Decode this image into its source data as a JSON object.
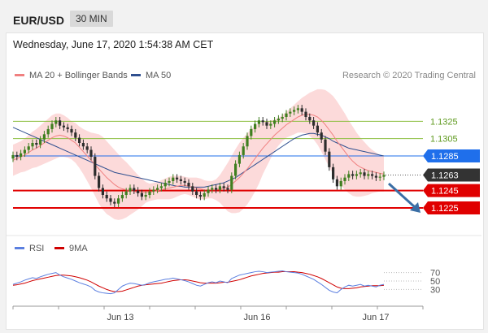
{
  "header": {
    "pair": "EUR/USD",
    "timeframe": "30 MIN"
  },
  "datetime": "Wednesday, June 17, 2020 1:54:38 AM CET",
  "credit": "Research © 2020 Trading Central",
  "colors": {
    "bollinger_fill": "#fbd3d3",
    "ma20": "#f08080",
    "ma50": "#2f4f8f",
    "support": "#e00000",
    "resistance": "#8cbf3f",
    "pivot_blue": "#1f6feb",
    "last_price": "#333333",
    "arrow": "#3a6ea5",
    "rsi": "#5b7fe0",
    "rsi_ma": "#d00000",
    "candle_up": "#3f7f1f",
    "candle_down": "#2d2d2d"
  },
  "chart_data": [
    {
      "type": "candlestick",
      "title": "EUR/USD",
      "timeframe": "30 MIN",
      "ylim": [
        1.121,
        1.136
      ],
      "x_ticks": [
        "Jun 13",
        "Jun 16",
        "Jun 17"
      ],
      "legend": [
        {
          "name": "MA 20 + Bollinger Bands",
          "color": "#f08080"
        },
        {
          "name": "MA 50",
          "color": "#2f4f8f"
        }
      ],
      "levels": [
        {
          "label": "1.1325",
          "value": 1.1325,
          "kind": "resistance"
        },
        {
          "label": "1.1305",
          "value": 1.1305,
          "kind": "resistance"
        },
        {
          "label": "1.1285",
          "value": 1.1285,
          "kind": "pivot"
        },
        {
          "label": "1.1263",
          "value": 1.1263,
          "kind": "last"
        },
        {
          "label": "1.1245",
          "value": 1.1245,
          "kind": "support"
        },
        {
          "label": "1.1225",
          "value": 1.1225,
          "kind": "support"
        }
      ],
      "close": [
        1.1286,
        1.1284,
        1.1288,
        1.1292,
        1.1296,
        1.13,
        1.1298,
        1.1304,
        1.131,
        1.1316,
        1.1322,
        1.1326,
        1.132,
        1.1318,
        1.1316,
        1.1312,
        1.1306,
        1.13,
        1.1296,
        1.1292,
        1.1284,
        1.1262,
        1.1248,
        1.124,
        1.1236,
        1.1232,
        1.123,
        1.1236,
        1.124,
        1.1244,
        1.1248,
        1.1245,
        1.1242,
        1.1238,
        1.124,
        1.1244,
        1.1246,
        1.1248,
        1.125,
        1.1254,
        1.1256,
        1.126,
        1.1258,
        1.1256,
        1.1254,
        1.125,
        1.1244,
        1.124,
        1.1238,
        1.1242,
        1.1246,
        1.1248,
        1.1246,
        1.125,
        1.1248,
        1.1246,
        1.1262,
        1.1276,
        1.1286,
        1.1296,
        1.1308,
        1.1316,
        1.1322,
        1.1326,
        1.1324,
        1.132,
        1.1322,
        1.1326,
        1.1328,
        1.133,
        1.1334,
        1.1336,
        1.1338,
        1.134,
        1.1336,
        1.133,
        1.1326,
        1.132,
        1.1312,
        1.1304,
        1.129,
        1.1272,
        1.1258,
        1.125,
        1.1256,
        1.126,
        1.1264,
        1.1262,
        1.1264,
        1.1266,
        1.1262,
        1.1264,
        1.1262,
        1.126,
        1.1261,
        1.1263
      ],
      "ma20": [
        1.128,
        1.1282,
        1.1284,
        1.1286,
        1.1289,
        1.1292,
        1.1294,
        1.1297,
        1.13,
        1.1303,
        1.1306,
        1.1308,
        1.1309,
        1.1308,
        1.1306,
        1.1303,
        1.13,
        1.1295,
        1.129,
        1.1285,
        1.128,
        1.1275,
        1.127,
        1.1265,
        1.126,
        1.1256,
        1.1252,
        1.1249,
        1.1247,
        1.1246,
        1.1245,
        1.1244,
        1.1243,
        1.1243,
        1.1243,
        1.1243,
        1.1244,
        1.1245,
        1.1246,
        1.1247,
        1.1248,
        1.1249,
        1.125,
        1.1251,
        1.1251,
        1.125,
        1.1249,
        1.1248,
        1.1247,
        1.1246,
        1.1246,
        1.1246,
        1.1246,
        1.1247,
        1.1248,
        1.1249,
        1.1252,
        1.1256,
        1.126,
        1.1265,
        1.127,
        1.1276,
        1.1282,
        1.1288,
        1.1294,
        1.1299,
        1.1304,
        1.1309,
        1.1313,
        1.1317,
        1.1321,
        1.1324,
        1.1327,
        1.133,
        1.1332,
        1.1333,
        1.1333,
        1.1332,
        1.133,
        1.1326,
        1.1321,
        1.1315,
        1.1309,
        1.1302,
        1.1296,
        1.129,
        1.1284,
        1.1279,
        1.1275,
        1.1272,
        1.127,
        1.1268,
        1.1267,
        1.1266,
        1.1265,
        1.1264
      ],
      "ma50": [
        1.1318,
        1.1316,
        1.1314,
        1.1312,
        1.131,
        1.1308,
        1.1306,
        1.1304,
        1.1302,
        1.13,
        1.1298,
        1.1296,
        1.1294,
        1.1292,
        1.129,
        1.1288,
        1.1286,
        1.1284,
        1.1282,
        1.128,
        1.1278,
        1.1276,
        1.1274,
        1.1272,
        1.127,
        1.1268,
        1.1266,
        1.1265,
        1.1264,
        1.1263,
        1.1262,
        1.1261,
        1.126,
        1.1259,
        1.1258,
        1.1257,
        1.1256,
        1.1255,
        1.1254,
        1.1253,
        1.1252,
        1.1251,
        1.125,
        1.125,
        1.1249,
        1.1249,
        1.1249,
        1.1249,
        1.1249,
        1.1249,
        1.125,
        1.1251,
        1.1252,
        1.1253,
        1.1254,
        1.1256,
        1.1258,
        1.126,
        1.1263,
        1.1266,
        1.1269,
        1.1272,
        1.1275,
        1.1278,
        1.1281,
        1.1284,
        1.1287,
        1.129,
        1.1293,
        1.1296,
        1.1299,
        1.1302,
        1.1305,
        1.1307,
        1.1309,
        1.131,
        1.1311,
        1.1311,
        1.131,
        1.1309,
        1.1307,
        1.1305,
        1.1302,
        1.13,
        1.1298,
        1.1296,
        1.1294,
        1.1293,
        1.1292,
        1.1291,
        1.129,
        1.1289,
        1.1288,
        1.1287,
        1.1286,
        1.1285
      ],
      "bb_width": [
        0.0018,
        0.0018,
        0.0018,
        0.0019,
        0.002,
        0.0021,
        0.0022,
        0.0023,
        0.0024,
        0.0025,
        0.0026,
        0.0026,
        0.0025,
        0.0024,
        0.0023,
        0.0022,
        0.0023,
        0.0024,
        0.0026,
        0.0029,
        0.0032,
        0.0036,
        0.004,
        0.0042,
        0.0042,
        0.0041,
        0.004,
        0.0038,
        0.0035,
        0.0032,
        0.0028,
        0.0024,
        0.002,
        0.0016,
        0.0012,
        0.001,
        0.001,
        0.001,
        0.0011,
        0.0012,
        0.0013,
        0.0013,
        0.0012,
        0.0011,
        0.001,
        0.001,
        0.0011,
        0.0012,
        0.0012,
        0.0011,
        0.001,
        0.001,
        0.0012,
        0.0016,
        0.0022,
        0.0028,
        0.0033,
        0.0037,
        0.004,
        0.0041,
        0.0041,
        0.004,
        0.0038,
        0.0035,
        0.003,
        0.0026,
        0.0022,
        0.0018,
        0.0016,
        0.0015,
        0.0015,
        0.0016,
        0.0017,
        0.0018,
        0.002,
        0.0022,
        0.0025,
        0.0028,
        0.0032,
        0.0036,
        0.004,
        0.0043,
        0.0045,
        0.0046,
        0.0045,
        0.0044,
        0.0042,
        0.004,
        0.0037,
        0.0034,
        0.0031,
        0.0028,
        0.0025,
        0.0023,
        0.0021,
        0.002
      ]
    },
    {
      "type": "line",
      "title": "RSI",
      "ylim": [
        0,
        100
      ],
      "y_ticks": [
        "70",
        "50",
        "30"
      ],
      "legend": [
        {
          "name": "RSI",
          "color": "#5b7fe0"
        },
        {
          "name": "9MA",
          "color": "#d00000"
        }
      ],
      "rsi": [
        42,
        45,
        48,
        52,
        55,
        58,
        56,
        60,
        63,
        66,
        68,
        70,
        64,
        60,
        57,
        54,
        50,
        46,
        43,
        40,
        36,
        28,
        24,
        22,
        21,
        20,
        22,
        30,
        38,
        42,
        45,
        44,
        42,
        40,
        42,
        46,
        48,
        50,
        52,
        54,
        55,
        57,
        55,
        53,
        51,
        48,
        44,
        40,
        38,
        42,
        46,
        48,
        46,
        50,
        48,
        46,
        56,
        60,
        64,
        66,
        68,
        70,
        72,
        73,
        72,
        70,
        71,
        72,
        73,
        74,
        72,
        71,
        70,
        69,
        66,
        62,
        58,
        54,
        48,
        42,
        35,
        28,
        24,
        22,
        30,
        36,
        40,
        38,
        40,
        42,
        38,
        40,
        38,
        36,
        40,
        42
      ],
      "ma9": [
        40,
        41,
        43,
        45,
        48,
        51,
        53,
        55,
        57,
        59,
        61,
        63,
        64,
        64,
        63,
        62,
        60,
        58,
        55,
        52,
        48,
        43,
        38,
        34,
        30,
        27,
        25,
        25,
        26,
        29,
        32,
        35,
        38,
        40,
        41,
        42,
        43,
        44,
        45,
        47,
        49,
        51,
        52,
        53,
        53,
        52,
        50,
        48,
        46,
        45,
        45,
        45,
        45,
        46,
        47,
        47,
        49,
        51,
        53,
        56,
        59,
        62,
        64,
        66,
        68,
        69,
        70,
        71,
        71,
        72,
        72,
        72,
        72,
        71,
        70,
        68,
        66,
        63,
        60,
        56,
        51,
        46,
        41,
        36,
        33,
        32,
        32,
        33,
        34,
        36,
        37,
        38,
        39,
        39,
        39,
        40
      ]
    }
  ]
}
